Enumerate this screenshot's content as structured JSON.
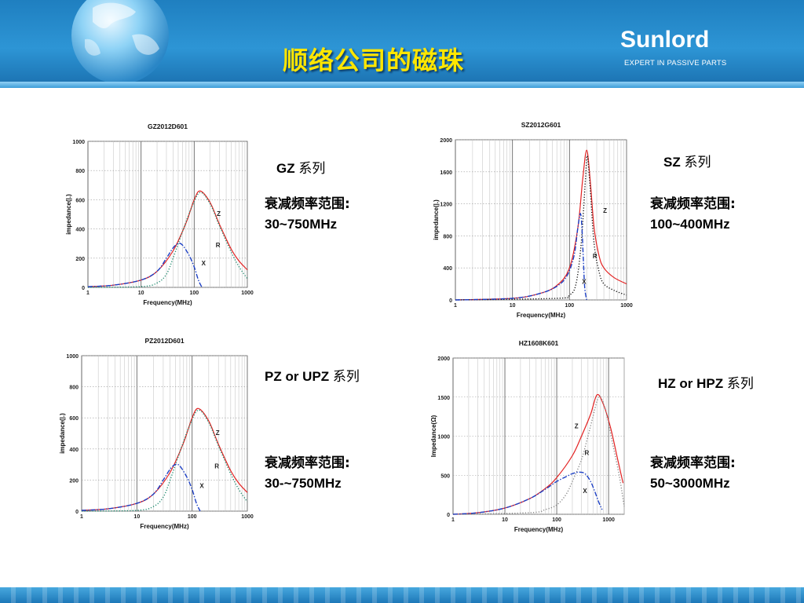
{
  "slide": {
    "title": "顺络公司的磁珠",
    "brand": "Sunlord",
    "tagline": "EXPERT IN PASSIVE PARTS"
  },
  "colors": {
    "Z": "#e32222",
    "R": "#1f8a6e",
    "R_dark": "#111111",
    "X": "#1c3fc4",
    "R_gray": "#888888"
  },
  "groups": [
    {
      "name": "GZ",
      "suffix": "系列",
      "range_label": "衰减频率范围:",
      "range_value": "30~750MHz"
    },
    {
      "name": "SZ",
      "suffix": "系列",
      "range_label": "衰减频率范围:",
      "range_value": "100~400MHz"
    },
    {
      "name": "PZ or UPZ",
      "suffix": "系列",
      "range_label": "衰减频率范围:",
      "range_value": "30-~750MHz"
    },
    {
      "name": "HZ or HPZ",
      "suffix": "系列",
      "range_label": "衰减频率范围:",
      "range_value": "50~3000MHz"
    }
  ],
  "chart_data": [
    {
      "type": "line",
      "title": "GZ2012D601",
      "xlabel": "Frequency(MHz)",
      "ylabel": "impedance(|.)",
      "xscale": "log",
      "xlim": [
        1,
        1000
      ],
      "ylim": [
        0,
        1000
      ],
      "xticks": [
        "1",
        "10",
        "100",
        "1000"
      ],
      "yticks": [
        "0",
        "200",
        "400",
        "600",
        "800",
        "1000"
      ],
      "series": [
        {
          "name": "Z",
          "style": "solid",
          "color_key": "Z",
          "x": [
            1,
            3,
            10,
            20,
            40,
            70,
            100,
            130,
            200,
            300,
            500,
            700,
            1000
          ],
          "y": [
            5,
            15,
            50,
            110,
            250,
            440,
            600,
            660,
            580,
            430,
            260,
            180,
            120
          ]
        },
        {
          "name": "R",
          "style": "dotted",
          "color_key": "R",
          "x": [
            1,
            10,
            20,
            30,
            40,
            60,
            90,
            130,
            200,
            300,
            500,
            700,
            1000
          ],
          "y": [
            0,
            5,
            30,
            90,
            200,
            380,
            550,
            650,
            570,
            420,
            240,
            140,
            60
          ]
        },
        {
          "name": "X",
          "style": "dashdot",
          "color_key": "X",
          "x": [
            1,
            3,
            10,
            20,
            30,
            40,
            50,
            60,
            80,
            100,
            120,
            140
          ],
          "y": [
            5,
            15,
            50,
            110,
            200,
            270,
            300,
            290,
            220,
            140,
            50,
            0
          ]
        }
      ],
      "curve_labels": [
        {
          "text": "Z",
          "x": 290,
          "y": 490
        },
        {
          "text": "R",
          "x": 280,
          "y": 275
        },
        {
          "text": "X",
          "x": 150,
          "y": 150
        }
      ]
    },
    {
      "type": "line",
      "title": "SZ2012G601",
      "xlabel": "Frequency(MHz)",
      "ylabel": "impedance(|.)",
      "xscale": "log",
      "xlim": [
        1,
        1000
      ],
      "ylim": [
        0,
        2000
      ],
      "xticks": [
        "1",
        "10",
        "100",
        "1000"
      ],
      "yticks": [
        "0",
        "400",
        "800",
        "1200",
        "1600",
        "2000"
      ],
      "series": [
        {
          "name": "Z",
          "style": "solid",
          "color_key": "Z",
          "x": [
            1,
            10,
            30,
            60,
            100,
            140,
            170,
            200,
            230,
            270,
            330,
            400,
            600,
            1000
          ],
          "y": [
            0,
            20,
            80,
            180,
            400,
            900,
            1500,
            1870,
            1500,
            900,
            550,
            400,
            280,
            200
          ]
        },
        {
          "name": "R",
          "style": "dotted",
          "color_key": "R_dark",
          "x": [
            1,
            60,
            100,
            130,
            160,
            190,
            205,
            230,
            270,
            330,
            400,
            600,
            1000
          ],
          "y": [
            0,
            20,
            60,
            200,
            700,
            1500,
            1800,
            1400,
            700,
            350,
            200,
            120,
            60
          ]
        },
        {
          "name": "X",
          "style": "dashdot",
          "color_key": "X",
          "x": [
            1,
            10,
            30,
            60,
            90,
            120,
            140,
            155,
            165,
            175,
            185,
            200
          ],
          "y": [
            0,
            20,
            80,
            170,
            300,
            550,
            900,
            1080,
            900,
            500,
            150,
            0
          ]
        }
      ],
      "curve_labels": [
        {
          "text": "Z",
          "x": 420,
          "y": 1090
        },
        {
          "text": "R",
          "x": 280,
          "y": 520
        },
        {
          "text": "X",
          "x": 180,
          "y": 200
        }
      ]
    },
    {
      "type": "line",
      "title": "PZ2012D601",
      "xlabel": "Frequency(MHz)",
      "ylabel": "impedance(|.)",
      "xscale": "log",
      "xlim": [
        1,
        1000
      ],
      "ylim": [
        0,
        1000
      ],
      "xticks": [
        "1",
        "10",
        "100",
        "1000"
      ],
      "yticks": [
        "0",
        "200",
        "400",
        "600",
        "800",
        "1000"
      ],
      "series": [
        {
          "name": "Z",
          "style": "solid",
          "color_key": "Z",
          "x": [
            1,
            3,
            10,
            20,
            40,
            70,
            100,
            130,
            200,
            300,
            500,
            700,
            1000
          ],
          "y": [
            5,
            15,
            50,
            110,
            250,
            440,
            600,
            660,
            580,
            430,
            260,
            180,
            120
          ]
        },
        {
          "name": "R",
          "style": "dotted",
          "color_key": "R",
          "x": [
            1,
            10,
            20,
            30,
            40,
            60,
            90,
            130,
            200,
            300,
            500,
            700,
            1000
          ],
          "y": [
            0,
            5,
            30,
            90,
            200,
            380,
            550,
            650,
            570,
            420,
            240,
            140,
            60
          ]
        },
        {
          "name": "X",
          "style": "dashdot",
          "color_key": "X",
          "x": [
            1,
            3,
            10,
            20,
            30,
            40,
            50,
            60,
            80,
            100,
            120,
            140
          ],
          "y": [
            5,
            15,
            50,
            110,
            200,
            270,
            300,
            290,
            220,
            140,
            50,
            0
          ]
        }
      ],
      "curve_labels": [
        {
          "text": "Z",
          "x": 290,
          "y": 490
        },
        {
          "text": "R",
          "x": 280,
          "y": 275
        },
        {
          "text": "X",
          "x": 150,
          "y": 150
        }
      ]
    },
    {
      "type": "line",
      "title": "HZ1608K601",
      "xlabel": "Frequency(MHz)",
      "ylabel": "Impedance(Ω)",
      "xscale": "log",
      "xlim": [
        1,
        2000
      ],
      "ylim": [
        0,
        2000
      ],
      "xticks": [
        "1",
        "10",
        "100",
        "1000"
      ],
      "yticks": [
        "0",
        "500",
        "1000",
        "1500",
        "2000"
      ],
      "series": [
        {
          "name": "Z",
          "style": "solid",
          "color_key": "Z",
          "x": [
            1,
            3,
            10,
            30,
            60,
            100,
            200,
            300,
            450,
            600,
            800,
            1100,
            1500,
            1900
          ],
          "y": [
            0,
            20,
            80,
            200,
            330,
            470,
            750,
            1000,
            1280,
            1530,
            1400,
            1100,
            700,
            400
          ]
        },
        {
          "name": "R",
          "style": "dotted",
          "color_key": "R_gray",
          "x": [
            1,
            30,
            60,
            100,
            150,
            200,
            300,
            400,
            500,
            600,
            700,
            900,
            1200,
            1600,
            2000
          ],
          "y": [
            0,
            20,
            60,
            120,
            250,
            420,
            700,
            1000,
            1250,
            1450,
            1500,
            1300,
            900,
            500,
            100
          ]
        },
        {
          "name": "X",
          "style": "dashdot",
          "color_key": "X",
          "x": [
            1,
            3,
            10,
            30,
            60,
            100,
            150,
            200,
            270,
            350,
            450,
            550,
            650,
            750
          ],
          "y": [
            0,
            20,
            80,
            200,
            320,
            420,
            480,
            520,
            540,
            520,
            420,
            280,
            150,
            60
          ]
        }
      ],
      "curve_labels": [
        {
          "text": "Z",
          "x": 240,
          "y": 1100
        },
        {
          "text": "R",
          "x": 380,
          "y": 760
        },
        {
          "text": "X",
          "x": 350,
          "y": 270
        }
      ]
    }
  ]
}
